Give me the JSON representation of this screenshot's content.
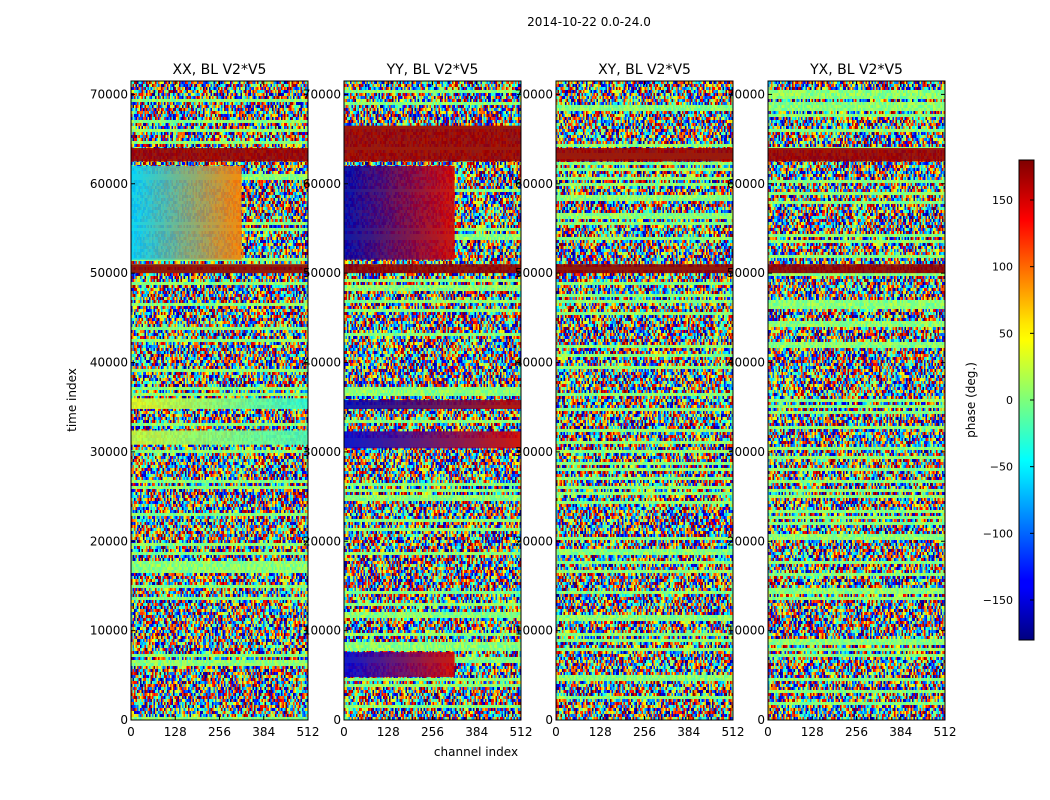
{
  "figure": {
    "suptitle": "2014-10-22 0.0-24.0"
  },
  "chart_data": [
    {
      "type": "heatmap",
      "title": "XX, BL V2*V5",
      "xlabel": "channel index",
      "ylabel": "time index",
      "xlim": [
        0,
        512
      ],
      "ylim": [
        0,
        71500
      ],
      "xticks": [
        0,
        128,
        256,
        384,
        512
      ],
      "yticks": [
        0,
        10000,
        20000,
        30000,
        40000,
        50000,
        60000,
        70000
      ],
      "value_range": [
        -180,
        180
      ],
      "features": [
        {
          "y": [
            30800,
            32400
          ],
          "x": [
            0,
            512
          ],
          "phase": 25,
          "phase_end": -20
        },
        {
          "y": [
            34800,
            36000
          ],
          "x": [
            0,
            512
          ],
          "phase": 35,
          "phase_end": -30
        },
        {
          "y": [
            50000,
            51000
          ],
          "x": [
            0,
            512
          ],
          "phase": 175,
          "phase_end": 175
        },
        {
          "y": [
            51500,
            62000
          ],
          "x": [
            0,
            320
          ],
          "phase": -60,
          "phase_end": 90
        },
        {
          "y": [
            62500,
            64000
          ],
          "x": [
            0,
            512
          ],
          "phase": 170,
          "phase_end": 170
        }
      ]
    },
    {
      "type": "heatmap",
      "title": "YY, BL V2*V5",
      "xlabel": "",
      "ylabel": "",
      "xlim": [
        0,
        512
      ],
      "ylim": [
        0,
        71500
      ],
      "xticks": [
        0,
        128,
        256,
        384,
        512
      ],
      "yticks": [
        0,
        10000,
        20000,
        30000,
        40000,
        50000,
        60000,
        70000
      ],
      "value_range": [
        -180,
        180
      ],
      "features": [
        {
          "y": [
            30400,
            32300
          ],
          "x": [
            0,
            512
          ],
          "phase": -150,
          "phase_end": 150
        },
        {
          "y": [
            34800,
            35800
          ],
          "x": [
            0,
            512
          ],
          "phase": -160,
          "phase_end": 160
        },
        {
          "y": [
            4800,
            7600
          ],
          "x": [
            0,
            320
          ],
          "phase": -150,
          "phase_end": 150
        },
        {
          "y": [
            50000,
            51000
          ],
          "x": [
            0,
            512
          ],
          "phase": 175,
          "phase_end": 175
        },
        {
          "y": [
            51500,
            62000
          ],
          "x": [
            0,
            320
          ],
          "phase": -165,
          "phase_end": 150
        },
        {
          "y": [
            62500,
            66500
          ],
          "x": [
            0,
            512
          ],
          "phase": 170,
          "phase_end": 170
        }
      ]
    },
    {
      "type": "heatmap",
      "title": "XY, BL V2*V5",
      "xlabel": "",
      "ylabel": "",
      "xlim": [
        0,
        512
      ],
      "ylim": [
        0,
        71500
      ],
      "xticks": [
        0,
        128,
        256,
        384,
        512
      ],
      "yticks": [
        0,
        10000,
        20000,
        30000,
        40000,
        50000,
        60000,
        70000
      ],
      "value_range": [
        -180,
        180
      ],
      "features": [
        {
          "y": [
            50000,
            51000
          ],
          "x": [
            0,
            512
          ],
          "phase": 175,
          "phase_end": 175
        },
        {
          "y": [
            62500,
            64000
          ],
          "x": [
            0,
            512
          ],
          "phase": 170,
          "phase_end": 170
        }
      ]
    },
    {
      "type": "heatmap",
      "title": "YX, BL V2*V5",
      "xlabel": "",
      "ylabel": "",
      "xlim": [
        0,
        512
      ],
      "ylim": [
        0,
        71500
      ],
      "xticks": [
        0,
        128,
        256,
        384,
        512
      ],
      "yticks": [
        0,
        10000,
        20000,
        30000,
        40000,
        50000,
        60000,
        70000
      ],
      "value_range": [
        -180,
        180
      ],
      "features": [
        {
          "y": [
            50000,
            51000
          ],
          "x": [
            0,
            512
          ],
          "phase": 175,
          "phase_end": 175
        },
        {
          "y": [
            62500,
            64000
          ],
          "x": [
            0,
            512
          ],
          "phase": 170,
          "phase_end": 170
        }
      ]
    }
  ],
  "colorbar": {
    "label": "phase (deg.)",
    "range": [
      -180,
      180
    ],
    "ticks": [
      -150,
      -100,
      -50,
      0,
      50,
      100,
      150
    ],
    "colormap": "jet"
  }
}
